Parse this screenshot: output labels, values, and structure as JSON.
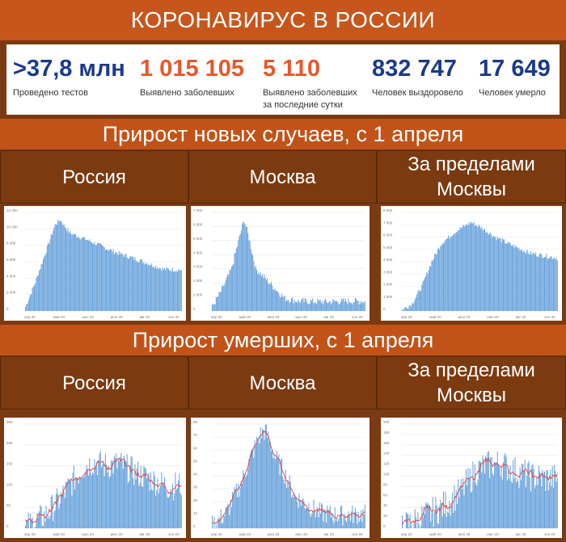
{
  "title": "КОРОНАВИРУС В РОССИИ",
  "stats": [
    {
      "value": ">37,8 млн",
      "label": "Проведено тестов",
      "label2": "",
      "color": "#1a3a8a"
    },
    {
      "value": "1 015 105",
      "label": "Выявлено заболевших",
      "label2": "",
      "color": "#e8572a"
    },
    {
      "value": "5 110",
      "label": "Выявлено заболевших",
      "label2": "за последние сутки",
      "color": "#e8572a"
    },
    {
      "value": "832 747",
      "label": "Человек выздоровело",
      "label2": "",
      "color": "#1a3a8a"
    },
    {
      "value": "17 649",
      "label": "Человек умерло",
      "label2": "",
      "color": "#1a3a8a"
    }
  ],
  "section1": "Прирост новых случаев, с 1 апреля",
  "section2": "Прирост умерших, с 1 апреля",
  "regions": [
    "Россия",
    "Москва",
    "За пределами Москвы"
  ],
  "colors": {
    "bar": "#6aa3dc",
    "line": "#e04040",
    "banner": "#c6561c",
    "header": "#7b3a10"
  },
  "chart_data": [
    {
      "type": "bar",
      "metric": "new_cases",
      "region": "Россия",
      "ylim": [
        0,
        12000
      ],
      "yticks": [
        "0",
        "2 000",
        "4 000",
        "6 000",
        "8 000",
        "10 000",
        "12 000"
      ],
      "xticks": [
        "апр 20",
        "май 20",
        "июн 20",
        "июл 20",
        "авг 20",
        "сен 20"
      ],
      "knots": [
        [
          0,
          500
        ],
        [
          10,
          3500
        ],
        [
          20,
          7000
        ],
        [
          30,
          10500
        ],
        [
          35,
          11100
        ],
        [
          45,
          9500
        ],
        [
          60,
          8800
        ],
        [
          75,
          8000
        ],
        [
          90,
          7200
        ],
        [
          105,
          6600
        ],
        [
          120,
          6000
        ],
        [
          140,
          5100
        ],
        [
          158,
          5000
        ]
      ],
      "noise": 300,
      "smooth": false
    },
    {
      "type": "bar",
      "metric": "new_cases",
      "region": "Москва",
      "ylim": [
        0,
        7000
      ],
      "yticks": [
        "0",
        "1 000",
        "2 000",
        "3 000",
        "4 000",
        "5 000",
        "6 000",
        "7 000"
      ],
      "xticks": [
        "апр 20",
        "май 20",
        "июн 20",
        "июл 20",
        "авг 20",
        "сен 20"
      ],
      "knots": [
        [
          0,
          300
        ],
        [
          10,
          1500
        ],
        [
          20,
          3000
        ],
        [
          28,
          5200
        ],
        [
          33,
          6500
        ],
        [
          38,
          5200
        ],
        [
          45,
          3000
        ],
        [
          55,
          2300
        ],
        [
          65,
          1600
        ],
        [
          75,
          900
        ],
        [
          90,
          700
        ],
        [
          120,
          650
        ],
        [
          140,
          700
        ],
        [
          158,
          700
        ]
      ],
      "noise": 250,
      "smooth": false
    },
    {
      "type": "bar",
      "metric": "new_cases",
      "region": "За пределами Москвы",
      "ylim": [
        0,
        8000
      ],
      "yticks": [
        "0",
        "1 000",
        "2 000",
        "3 000",
        "4 000",
        "5 000",
        "6 000",
        "7 000",
        "8 000"
      ],
      "xticks": [
        "апр 20",
        "май 20",
        "июн 20",
        "июл 20",
        "авг 20",
        "сен 20"
      ],
      "knots": [
        [
          0,
          100
        ],
        [
          10,
          600
        ],
        [
          20,
          2000
        ],
        [
          30,
          4000
        ],
        [
          40,
          5500
        ],
        [
          55,
          6500
        ],
        [
          70,
          7200
        ],
        [
          80,
          6800
        ],
        [
          95,
          6000
        ],
        [
          110,
          5400
        ],
        [
          130,
          4700
        ],
        [
          158,
          4300
        ]
      ],
      "noise": 200,
      "smooth": false
    },
    {
      "type": "bar+line",
      "metric": "deaths",
      "region": "Россия",
      "ylim": [
        0,
        250
      ],
      "yticks": [
        "0",
        "50",
        "100",
        "150",
        "200",
        "250"
      ],
      "xticks": [
        "апр 20",
        "май 20",
        "июн 20",
        "июл 20",
        "авг 20",
        "сен 20"
      ],
      "knots": [
        [
          0,
          2
        ],
        [
          20,
          30
        ],
        [
          35,
          70
        ],
        [
          50,
          120
        ],
        [
          60,
          150
        ],
        [
          70,
          160
        ],
        [
          80,
          150
        ],
        [
          95,
          155
        ],
        [
          110,
          135
        ],
        [
          130,
          115
        ],
        [
          145,
          100
        ],
        [
          158,
          105
        ]
      ],
      "noise": 35,
      "smooth": true
    },
    {
      "type": "bar+line",
      "metric": "deaths",
      "region": "Москва",
      "ylim": [
        0,
        80
      ],
      "yticks": [
        "0",
        "10",
        "20",
        "30",
        "40",
        "50",
        "60",
        "70",
        "80"
      ],
      "xticks": [
        "апр 20",
        "май 20",
        "июн 20",
        "июл 20",
        "авг 20",
        "сен 20"
      ],
      "knots": [
        [
          0,
          2
        ],
        [
          15,
          12
        ],
        [
          30,
          35
        ],
        [
          40,
          55
        ],
        [
          50,
          72
        ],
        [
          55,
          75
        ],
        [
          65,
          55
        ],
        [
          75,
          42
        ],
        [
          85,
          25
        ],
        [
          95,
          20
        ],
        [
          110,
          12
        ],
        [
          130,
          10
        ],
        [
          158,
          11
        ]
      ],
      "noise": 8,
      "smooth": true
    },
    {
      "type": "bar+line",
      "metric": "deaths",
      "region": "За пределами Москвы",
      "ylim": [
        0,
        200
      ],
      "yticks": [
        "0",
        "20",
        "40",
        "60",
        "80",
        "100",
        "120",
        "140",
        "160",
        "180",
        "200"
      ],
      "xticks": [
        "апр 20",
        "май 20",
        "июн 20",
        "июл 20",
        "авг 20",
        "сен 20"
      ],
      "knots": [
        [
          0,
          2
        ],
        [
          20,
          20
        ],
        [
          40,
          40
        ],
        [
          60,
          70
        ],
        [
          75,
          110
        ],
        [
          85,
          120
        ],
        [
          100,
          125
        ],
        [
          115,
          110
        ],
        [
          130,
          100
        ],
        [
          145,
          95
        ],
        [
          158,
          95
        ]
      ],
      "noise": 30,
      "smooth": true
    }
  ]
}
